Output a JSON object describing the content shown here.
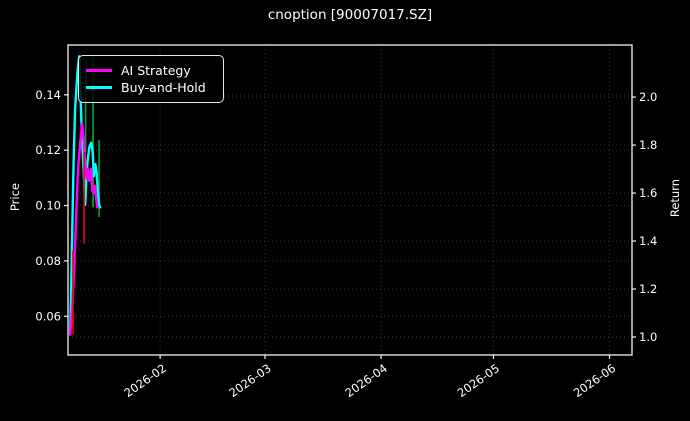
{
  "title": "cnoption [90007017.SZ]",
  "colors": {
    "background": "#000000",
    "text": "#ffffff",
    "frame": "#f2f2f2",
    "grid": "#3a3a3a",
    "ai_strategy": "#ff00ff",
    "buy_and_hold": "#00ffff",
    "buy_marker": "#00a332",
    "sell_marker": "#f00010"
  },
  "legend": {
    "items": [
      {
        "label": "AI Strategy",
        "color": "#ff00ff"
      },
      {
        "label": "Buy-and-Hold",
        "color": "#00ffff"
      }
    ]
  },
  "left_axis": {
    "label": "Price",
    "ticks": [
      {
        "label": "0.14",
        "value": 0.14
      },
      {
        "label": "0.12",
        "value": 0.12
      },
      {
        "label": "0.10",
        "value": 0.1
      },
      {
        "label": "0.08",
        "value": 0.08
      },
      {
        "label": "0.06",
        "value": 0.06
      }
    ]
  },
  "right_axis": {
    "label": "Return",
    "ticks": [
      {
        "label": "2.0",
        "value": 2.0
      },
      {
        "label": "1.8",
        "value": 1.8
      },
      {
        "label": "1.6",
        "value": 1.6
      },
      {
        "label": "1.4",
        "value": 1.4
      },
      {
        "label": "1.2",
        "value": 1.2
      },
      {
        "label": "1.0",
        "value": 1.0
      }
    ]
  },
  "x_axis": {
    "ticks": [
      {
        "label": "2026-02",
        "day": 24
      },
      {
        "label": "2026-03",
        "day": 52
      },
      {
        "label": "2026-04",
        "day": 83
      },
      {
        "label": "2026-05",
        "day": 113
      },
      {
        "label": "2026-06",
        "day": 144
      }
    ]
  },
  "chart_data": {
    "type": "line",
    "title": "cnoption [90007017.SZ]",
    "x_unit": "days since 2026-01-08",
    "x_range_days": [
      -0.6,
      150
    ],
    "x_tick_days": [
      24,
      52,
      83,
      113,
      144
    ],
    "x_tick_labels": [
      "2026-02",
      "2026-03",
      "2026-04",
      "2026-05",
      "2026-06"
    ],
    "grid": true,
    "legend_position": "upper left",
    "left_y_axis": {
      "label": "Price",
      "ticks": [
        0.06,
        0.08,
        0.1,
        0.12,
        0.14
      ],
      "range": [
        0.046,
        0.158
      ]
    },
    "right_y_axis": {
      "label": "Return",
      "ticks": [
        1.0,
        1.2,
        1.4,
        1.6,
        1.8,
        2.0
      ],
      "range": [
        0.925,
        2.217
      ]
    },
    "series": [
      {
        "name": "Buy-and-Hold",
        "color": "#00ffff",
        "axis": "right",
        "points": [
          [
            0.0,
            1.01
          ],
          [
            0.3,
            1.25
          ],
          [
            0.6,
            1.5
          ],
          [
            0.9,
            1.73
          ],
          [
            1.3,
            1.95
          ],
          [
            1.9,
            2.1
          ],
          [
            2.4,
            2.17
          ],
          [
            2.7,
            2.02
          ],
          [
            3.0,
            1.89
          ],
          [
            3.3,
            1.78
          ],
          [
            3.6,
            1.69
          ],
          [
            4.0,
            1.55
          ],
          [
            4.3,
            1.66
          ],
          [
            4.6,
            1.73
          ],
          [
            5.1,
            1.79
          ],
          [
            5.6,
            1.81
          ],
          [
            6.0,
            1.77
          ],
          [
            6.3,
            1.67
          ],
          [
            6.7,
            1.72
          ],
          [
            7.0,
            1.69
          ],
          [
            7.4,
            1.6
          ],
          [
            7.7,
            1.55
          ],
          [
            8.0,
            1.54
          ]
        ]
      },
      {
        "name": "AI Strategy",
        "color": "#ff00ff",
        "axis": "right",
        "points": [
          [
            0.0,
            1.01
          ],
          [
            0.5,
            1.11
          ],
          [
            1.1,
            1.3
          ],
          [
            1.6,
            1.51
          ],
          [
            2.1,
            1.7
          ],
          [
            2.7,
            1.82
          ],
          [
            3.2,
            1.89
          ],
          [
            3.6,
            1.82
          ],
          [
            4.0,
            1.72
          ],
          [
            4.4,
            1.66
          ],
          [
            4.7,
            1.7
          ],
          [
            5.1,
            1.65
          ],
          [
            5.5,
            1.7
          ],
          [
            5.9,
            1.61
          ],
          [
            6.3,
            1.6
          ],
          [
            6.6,
            1.63
          ],
          [
            6.9,
            1.58
          ],
          [
            7.2,
            1.54
          ]
        ]
      }
    ],
    "markers": [
      {
        "type": "vline",
        "kind": "sell",
        "color": "#f00010",
        "day": 0.73,
        "from": 1.36,
        "to": 1.01
      },
      {
        "type": "vline",
        "kind": "sell",
        "color": "#f00010",
        "day": 3.7,
        "from": 1.77,
        "to": 1.39
      },
      {
        "type": "vline",
        "kind": "buy",
        "color": "#00a332",
        "day": 4.1,
        "from": 2.15,
        "to": 1.77
      },
      {
        "type": "vline",
        "kind": "buy",
        "color": "#00a332",
        "day": 6.1,
        "from": 2.17,
        "to": 1.54
      },
      {
        "type": "vline",
        "kind": "buy",
        "color": "#00a332",
        "day": 7.7,
        "from": 1.82,
        "to": 1.5
      }
    ]
  }
}
